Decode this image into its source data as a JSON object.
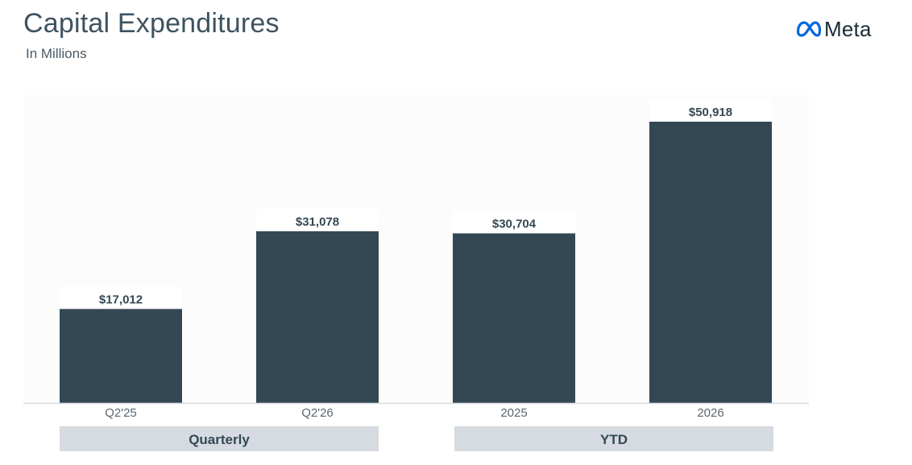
{
  "header": {
    "title": "Capital Expenditures",
    "subtitle": "In Millions",
    "logo_text": "Meta",
    "logo_icon": "meta-infinity-icon"
  },
  "colors": {
    "bar": "#344854",
    "plot_background": "#fcfcfc",
    "group_band": "#d5dbe0",
    "axis_line": "#d7dbdf",
    "logo_blue": "#0668e1"
  },
  "chart_data": {
    "type": "bar",
    "categories": [
      "Q2'25",
      "Q2'26",
      "2025",
      "2026"
    ],
    "values": [
      17012,
      31078,
      30704,
      50918
    ],
    "value_labels": [
      "$17,012",
      "$31,078",
      "$30,704",
      "$50,918"
    ],
    "groups": [
      {
        "label": "Quarterly",
        "categories": [
          "Q2'25",
          "Q2'26"
        ]
      },
      {
        "label": "YTD",
        "categories": [
          "2025",
          "2026"
        ]
      }
    ],
    "title": "Capital Expenditures",
    "subtitle": "In Millions",
    "xlabel": "",
    "ylabel": "",
    "ylim": [
      0,
      50918
    ],
    "grid": false,
    "legend": "none"
  }
}
